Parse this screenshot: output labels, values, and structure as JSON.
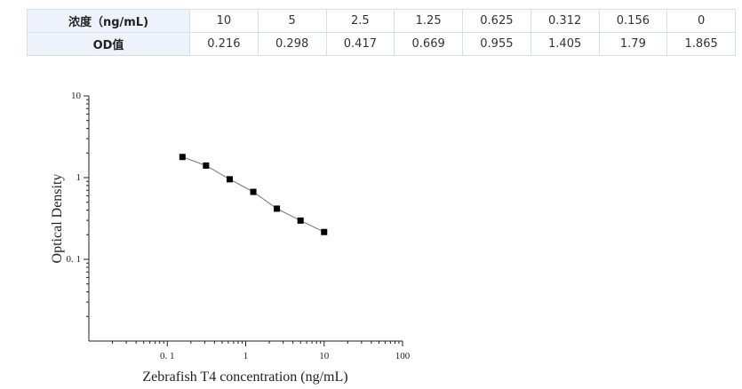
{
  "table": {
    "row1": {
      "header": "浓度（ng/mL)",
      "values": [
        "10",
        "5",
        "2.5",
        "1.25",
        "0.625",
        "0.312",
        "0.156",
        "0"
      ]
    },
    "row2": {
      "header": "OD值",
      "values": [
        "0.216",
        "0.298",
        "0.417",
        "0.669",
        "0.955",
        "1.405",
        "1.79",
        "1.865"
      ]
    }
  },
  "chart_data": {
    "type": "scatter",
    "title": "",
    "xlabel": "Zebrafish T4 concentration (ng/mL)",
    "ylabel": "Optical Density",
    "xscale": "log",
    "yscale": "log",
    "xlim": [
      0.01,
      100
    ],
    "ylim": [
      0.01,
      10
    ],
    "x_ticks": [
      {
        "value": 0.1,
        "label": "0. 1"
      },
      {
        "value": 1,
        "label": "1"
      },
      {
        "value": 10,
        "label": "10"
      },
      {
        "value": 100,
        "label": "100"
      }
    ],
    "y_ticks": [
      {
        "value": 0.1,
        "label": "0. 1"
      },
      {
        "value": 1,
        "label": "1"
      },
      {
        "value": 10,
        "label": "10"
      }
    ],
    "grid": false,
    "legend": "none",
    "marker_color": "#000000",
    "line_color": "#888888",
    "x": [
      10,
      5,
      2.5,
      1.25,
      0.625,
      0.312,
      0.156
    ],
    "y": [
      0.216,
      0.298,
      0.417,
      0.669,
      0.955,
      1.405,
      1.79
    ]
  }
}
